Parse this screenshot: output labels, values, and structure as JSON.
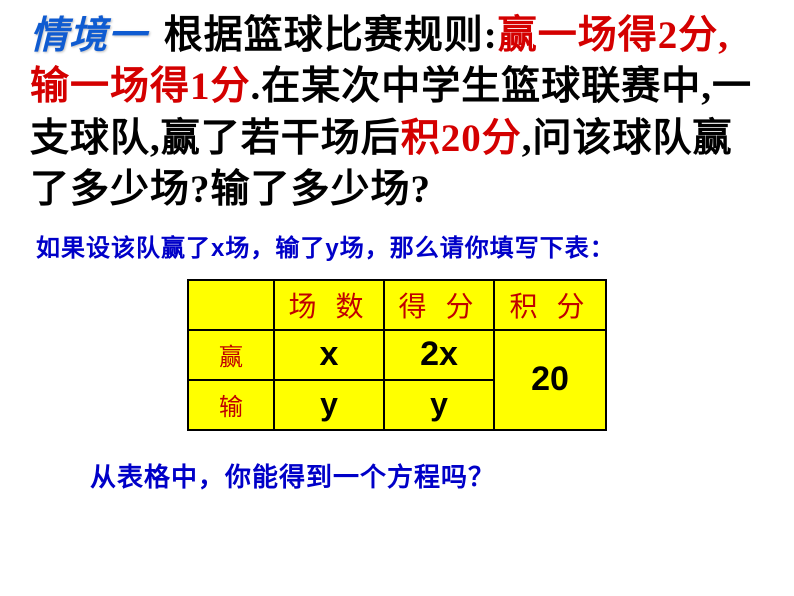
{
  "scenario_label": "情境一",
  "paragraph": {
    "p1_black": " 根据篮球比赛规则:",
    "p1_red": "赢一场得2分,输一场得1分",
    "p2_black_a": ".在某次中学生篮球联赛中,一支球队,赢了若干场后",
    "p2_red": "积20分",
    "p2_black_b": ",问该球队赢了多少场?输了多少场?"
  },
  "sub_instruction": {
    "prefix": "如果设该队赢了",
    "x": "x",
    "mid1": "场，输了",
    "y": "y",
    "suffix": "场，那么请你填写下表："
  },
  "table": {
    "headers": {
      "blank": "",
      "games": "场 数",
      "points": "得 分",
      "total": "积 分"
    },
    "rows": {
      "win": {
        "label": "赢",
        "games": "x",
        "points": "2x"
      },
      "lose": {
        "label": "输",
        "games": "y",
        "points": "y"
      }
    },
    "total_value": "20"
  },
  "bottom_question": "从表格中，你能得到一个方程吗？",
  "colors": {
    "label_blue": "#0f5bd1",
    "text_red": "#d40000",
    "table_red": "#c00000",
    "instruction_blue": "#0000c8",
    "table_bg": "#ffff00",
    "border": "#000000"
  }
}
